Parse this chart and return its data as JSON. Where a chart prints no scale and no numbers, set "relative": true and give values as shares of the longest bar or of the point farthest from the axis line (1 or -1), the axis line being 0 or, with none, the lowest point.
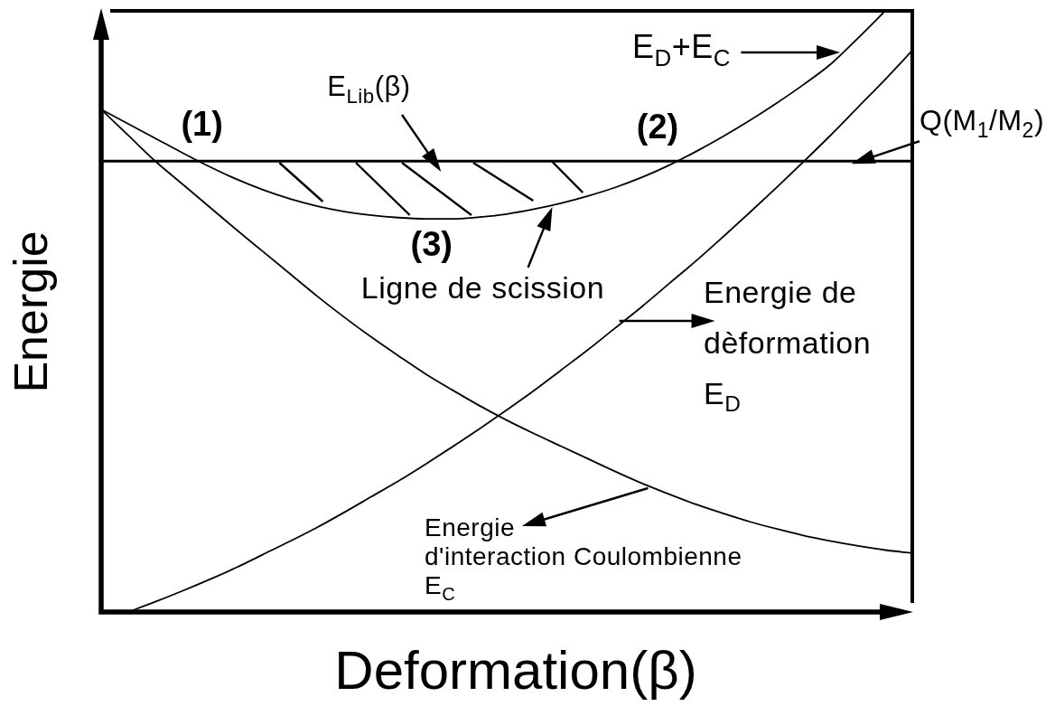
{
  "chart_data": {
    "type": "line",
    "xlabel": "Deformation(β)",
    "ylabel": "Energie",
    "relative": true,
    "legend": false,
    "grid": false,
    "categories": [
      null,
      null,
      null,
      null,
      null,
      null,
      null,
      null,
      null,
      null,
      null,
      null,
      null,
      null,
      null,
      null,
      null,
      null,
      null,
      null,
      null,
      null,
      null,
      null,
      null,
      null,
      null,
      null,
      null,
      null,
      null
    ],
    "series": [
      {
        "color": "#000000",
        "values": [
          0.836,
          0.812,
          0.788,
          0.764,
          0.741,
          0.72,
          0.702,
          0.687,
          0.675,
          0.666,
          0.66,
          0.656,
          0.654,
          0.654,
          0.657,
          0.662,
          0.67,
          0.68,
          0.692,
          0.706,
          0.723,
          0.743,
          0.766,
          0.791,
          0.818,
          0.847,
          0.878,
          0.912,
          0.955,
          1,
          null
        ]
      },
      {
        "color": "#000000",
        "values": [
          null,
          0,
          0.017,
          0.035,
          0.054,
          0.074,
          0.096,
          0.118,
          0.141,
          0.166,
          0.192,
          0.218,
          0.246,
          0.275,
          0.305,
          0.336,
          0.368,
          0.402,
          0.436,
          0.472,
          0.508,
          0.546,
          0.584,
          0.624,
          0.665,
          0.707,
          0.75,
          0.794,
          0.84,
          0.886,
          0.934
        ]
      },
      {
        "color": "#000000",
        "values": [
          0.836,
          0.793,
          0.75,
          0.712,
          0.674,
          0.636,
          0.599,
          0.562,
          0.525,
          0.49,
          0.457,
          0.426,
          0.396,
          0.369,
          0.343,
          0.319,
          0.297,
          0.276,
          0.255,
          0.234,
          0.214,
          0.196,
          0.179,
          0.164,
          0.15,
          0.138,
          0.127,
          0.118,
          0.11,
          0.103,
          0.098
        ]
      }
    ],
    "ref_lines": [
      {
        "axis": "y",
        "value": 0.75,
        "label": "Q(M$_{1}$/M$_{2}$)",
        "color": "#000000"
      }
    ],
    "annotations": [
      "(1)",
      "(2)",
      "(3)",
      "E$_{Lib}$(β)",
      "Ligne de scission",
      "E$_{D}$+E$_{C}$",
      "Energie de dèformation E$_{D}$",
      "Energie d'interaction Coulombienne E$_{C}$"
    ]
  }
}
